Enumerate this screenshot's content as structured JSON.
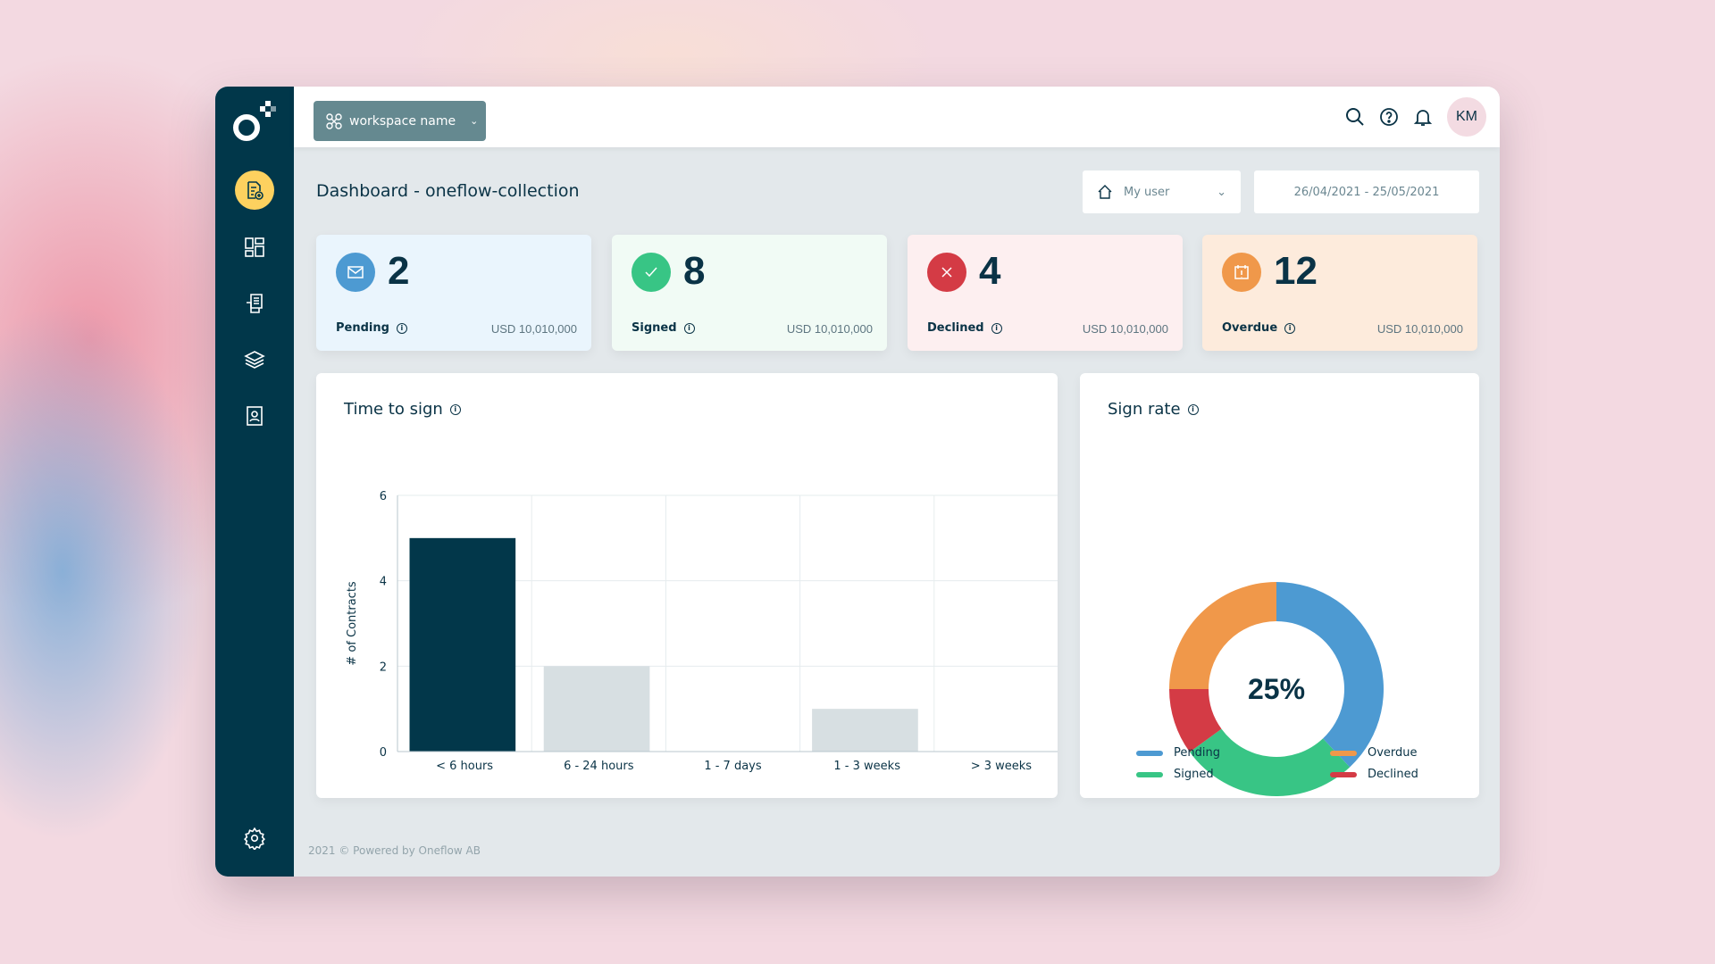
{
  "header": {
    "workspace": "workspace name",
    "user_initials": "KM",
    "icons": [
      "search-icon",
      "help-icon",
      "bell-icon"
    ]
  },
  "sidebar": {
    "items": [
      "new-contract",
      "dashboard",
      "contracts",
      "templates",
      "address-book",
      "settings"
    ]
  },
  "page": {
    "title": "Dashboard - oneflow-collection",
    "user_filter": "My user",
    "date_range": "26/04/2021 - 25/05/2021"
  },
  "cards": [
    {
      "count": "2",
      "label": "Pending",
      "amount": "USD 10,010,000",
      "color": "#4d9ad2",
      "bg": "#eaf5fd",
      "icon": "envelope-icon"
    },
    {
      "count": "8",
      "label": "Signed",
      "amount": "USD 10,010,000",
      "color": "#38c585",
      "bg": "#f1fbf5",
      "icon": "check-icon"
    },
    {
      "count": "4",
      "label": "Declined",
      "amount": "USD 10,010,000",
      "color": "#d43b45",
      "bg": "#fdeff0",
      "icon": "x-icon"
    },
    {
      "count": "12",
      "label": "Overdue",
      "amount": "USD 10,010,000",
      "color": "#f0984a",
      "bg": "#fdebdc",
      "icon": "calendar-alert-icon"
    }
  ],
  "chart_data": [
    {
      "type": "bar",
      "title": "Time to sign",
      "ylabel": "# of Contracts",
      "xlabel": "",
      "categories": [
        "< 6 hours",
        "6 - 24 hours",
        "1 - 7 days",
        "1 - 3 weeks",
        "> 3 weeks"
      ],
      "values": [
        5,
        2,
        0,
        1,
        0
      ],
      "ylim": [
        0,
        6
      ],
      "yticks": [
        "0",
        "2",
        "4",
        "6"
      ],
      "grid": true,
      "colors": [
        "#02374a",
        "#d7dfe2",
        "#d7dfe2",
        "#d7dfe2",
        "#d7dfe2"
      ]
    },
    {
      "type": "pie",
      "title": "Sign rate",
      "center_label": "25%",
      "slices": [
        {
          "name": "Pending",
          "value": 38,
          "color": "#4d9ad2"
        },
        {
          "name": "Signed",
          "value": 27,
          "color": "#38c585"
        },
        {
          "name": "Declined",
          "value": 10,
          "color": "#d43b45"
        },
        {
          "name": "Overdue",
          "value": 25,
          "color": "#f0984a"
        }
      ],
      "legend": [
        {
          "name": "Pending",
          "color": "#4d9ad2"
        },
        {
          "name": "Overdue",
          "color": "#f0984a"
        },
        {
          "name": "Signed",
          "color": "#38c585"
        },
        {
          "name": "Declined",
          "color": "#d43b45"
        }
      ],
      "legend_position": "bottom"
    }
  ],
  "footer": "2021 © Powered by Oneflow AB"
}
